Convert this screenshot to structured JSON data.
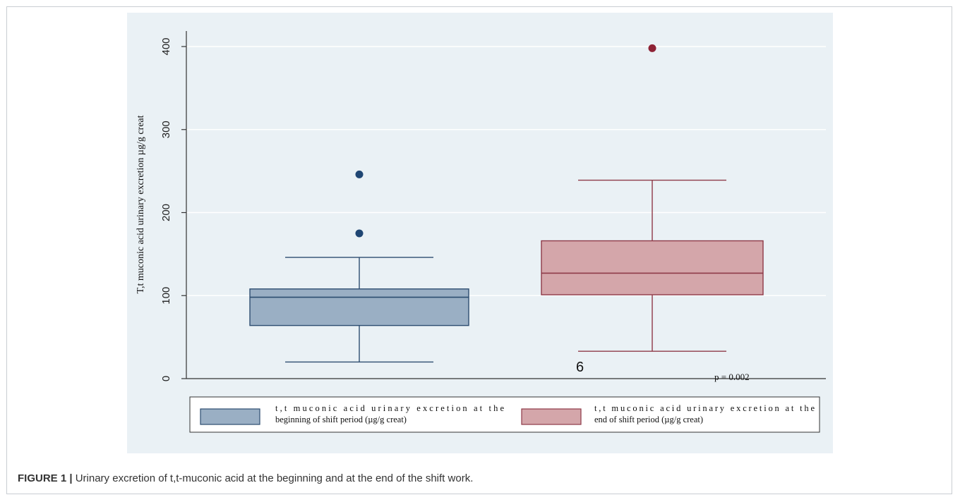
{
  "figure": {
    "caption_label": "FIGURE 1 |",
    "caption_text": " Urinary excretion of t,t-muconic acid at the beginning and at the end of the shift work."
  },
  "colors": {
    "background": "#eaf1f5",
    "blue_fill": "#9aafc4",
    "blue_line": "#2d4d70",
    "blue_point": "#1f4673",
    "red_fill": "#d4a6aa",
    "red_line": "#8e3a48",
    "red_point": "#8e2235"
  },
  "chart_data": {
    "type": "box",
    "ylabel": "T,t muconic acid urinary excretion µg/g creat",
    "ylim": [
      0,
      400
    ],
    "yticks": [
      0,
      100,
      200,
      300,
      400
    ],
    "grid": true,
    "legend_position": "bottom",
    "series": [
      {
        "name": "t,t muconic acid urinary excretion at the beginning of shift period (µg/g creat)",
        "legend_lines": [
          "t,t muconic acid urinary excretion at the",
          "beginning of shift period (µg/g creat)"
        ],
        "whisker_low": 20,
        "q1": 64,
        "median": 98,
        "q3": 108,
        "whisker_high": 146,
        "outliers": [
          175,
          246
        ]
      },
      {
        "name": "t,t muconic acid urinary excretion at the end of shift period (µg/g creat)",
        "legend_lines": [
          "t,t muconic acid urinary excretion at the",
          "end of shift period (µg/g creat)"
        ],
        "whisker_low": 33,
        "q1": 101,
        "median": 127,
        "q3": 166,
        "whisker_high": 239,
        "outliers": [
          398
        ]
      }
    ],
    "annotations": {
      "marker_text": "6",
      "p_value_text": "p = 0.002"
    }
  }
}
